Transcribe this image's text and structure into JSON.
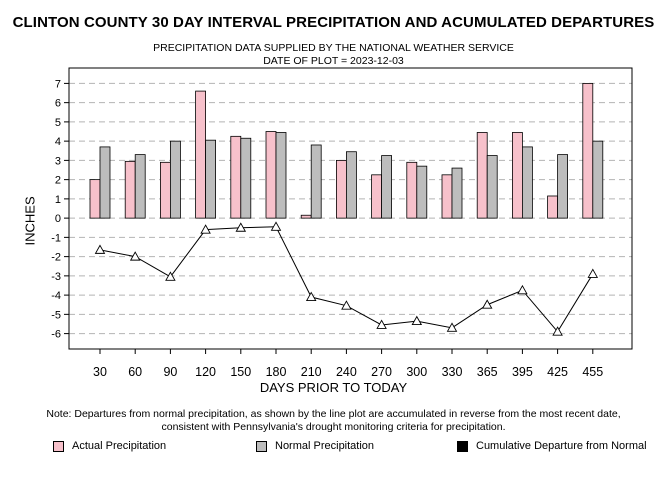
{
  "header": {
    "title": "CLINTON COUNTY 30 DAY INTERVAL PRECIPITATION AND ACUMULATED DEPARTURES",
    "subtitle1": "PRECIPITATION DATA SUPPLIED BY THE NATIONAL WEATHER SERVICE",
    "subtitle2": "DATE OF PLOT = 2023-12-03"
  },
  "note": "Note: Departures from normal precipitation, as shown by the line plot are accumulated in reverse from the most recent date, consistent with Pennsylvania's drought monitoring criteria for precipitation.",
  "legend": {
    "actual": "Actual Precipitation",
    "normal": "Normal Precipitation",
    "cumulative": "Cumulative Departure from Normal"
  },
  "colors": {
    "actual": "#f7c1cb",
    "normal": "#bdbdbd",
    "line": "#000000",
    "grid": "#b4b4b4"
  },
  "chart_data": {
    "type": "bar",
    "title": "CLINTON COUNTY 30 DAY INTERVAL PRECIPITATION AND ACUMULATED DEPARTURES",
    "xlabel": "DAYS PRIOR TO TODAY",
    "ylabel": "INCHES",
    "ylim": [
      -6.8,
      7.8
    ],
    "yticks": [
      7,
      6,
      5,
      4,
      3,
      2,
      1,
      0,
      -1,
      -2,
      -3,
      -4,
      -5,
      -6
    ],
    "grid": true,
    "categories": [
      "30",
      "60",
      "90",
      "120",
      "150",
      "180",
      "210",
      "240",
      "270",
      "300",
      "330",
      "365",
      "395",
      "425",
      "455"
    ],
    "series": [
      {
        "name": "Actual Precipitation",
        "type": "bar",
        "values": [
          2.0,
          2.95,
          2.9,
          6.6,
          4.25,
          4.5,
          0.15,
          3.0,
          2.25,
          2.9,
          2.25,
          4.45,
          4.45,
          1.15,
          7.0
        ]
      },
      {
        "name": "Normal Precipitation",
        "type": "bar",
        "values": [
          3.7,
          3.3,
          4.0,
          4.05,
          4.15,
          4.45,
          3.8,
          3.45,
          3.25,
          2.7,
          2.6,
          3.25,
          3.7,
          3.3,
          4.0
        ]
      },
      {
        "name": "Cumulative Departure from Normal",
        "type": "line",
        "values": [
          -1.65,
          -2.0,
          -3.05,
          -0.6,
          -0.5,
          -0.45,
          -4.1,
          -4.55,
          -5.55,
          -5.35,
          -5.7,
          -4.5,
          -3.75,
          -5.9,
          -2.9
        ]
      }
    ]
  }
}
